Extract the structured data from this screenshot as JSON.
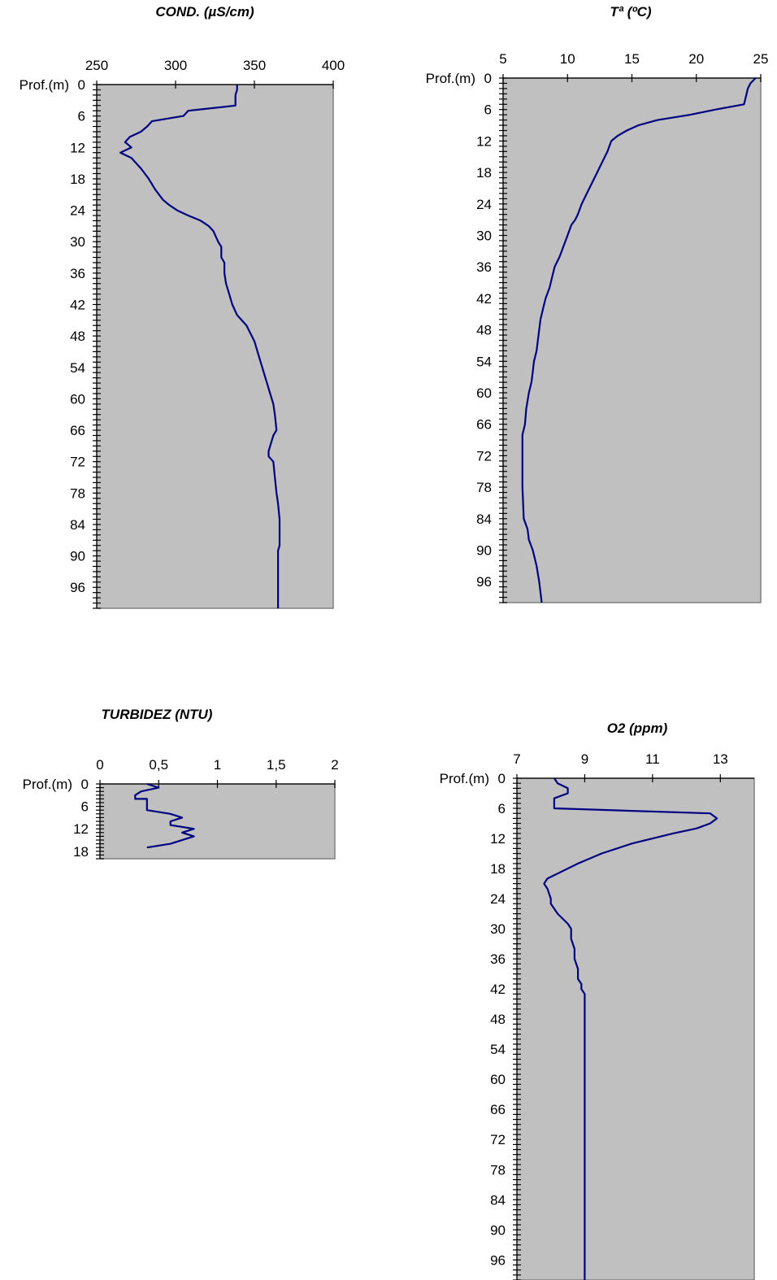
{
  "chart_data": [
    {
      "type": "line",
      "title": "COND. (µS/cm)",
      "depth_label": "Prof.(m)",
      "xlim": [
        250,
        400
      ],
      "ylim": [
        0,
        100
      ],
      "xticks": [
        "250",
        "300",
        "350",
        "400"
      ],
      "yticks": [
        "0",
        "6",
        "12",
        "18",
        "24",
        "30",
        "36",
        "42",
        "48",
        "54",
        "60",
        "66",
        "72",
        "78",
        "84",
        "90",
        "96"
      ],
      "series": [
        {
          "x": [
            339,
            339,
            338,
            338,
            338,
            308,
            305,
            285,
            282,
            278,
            271,
            268,
            272,
            265,
            272,
            278,
            283,
            287,
            292,
            296,
            301,
            308,
            316,
            321,
            324,
            327,
            329,
            329,
            331,
            331,
            332,
            334,
            336,
            339,
            345,
            350,
            353,
            356,
            358,
            360,
            362,
            363,
            364,
            362,
            360,
            359,
            359,
            362,
            363,
            364,
            365,
            366,
            366,
            366,
            365,
            365,
            365,
            365,
            365
          ],
          "y": [
            0,
            1,
            2,
            3,
            4,
            5,
            6,
            7,
            8,
            9,
            10,
            11,
            12,
            13,
            14,
            16,
            18,
            20,
            22,
            23,
            24,
            25,
            26,
            27,
            28,
            30,
            31,
            33,
            34,
            36,
            38,
            40,
            42,
            44,
            46,
            49,
            52,
            55,
            57,
            59,
            61,
            63,
            66,
            67,
            69,
            70,
            71,
            72,
            75,
            78,
            80,
            83,
            86,
            88,
            89,
            91,
            94,
            97,
            100
          ]
        }
      ]
    },
    {
      "type": "line",
      "title": "Tª (ºC)",
      "depth_label": "Prof.(m)",
      "xlim": [
        5,
        25
      ],
      "ylim": [
        0,
        100
      ],
      "xticks": [
        "5",
        "10",
        "15",
        "20",
        "25"
      ],
      "yticks": [
        "0",
        "6",
        "12",
        "18",
        "24",
        "30",
        "36",
        "42",
        "48",
        "54",
        "60",
        "66",
        "72",
        "78",
        "84",
        "90",
        "96"
      ],
      "series": [
        {
          "x": [
            24.6,
            24.2,
            24.0,
            23.9,
            23.7,
            21.5,
            19.5,
            17.0,
            15.5,
            14.6,
            13.9,
            13.4,
            13.1,
            12.7,
            12.3,
            11.9,
            11.5,
            11.1,
            10.8,
            10.6,
            10.3,
            10.0,
            9.7,
            9.4,
            9.0,
            8.8,
            8.6,
            8.3,
            8.1,
            7.9,
            7.8,
            7.7,
            7.6,
            7.4,
            7.3,
            7.2,
            7.0,
            6.8,
            6.7,
            6.5,
            6.5,
            6.5,
            6.6,
            6.9,
            7.0,
            7.3,
            7.6,
            7.8,
            8.0
          ],
          "y": [
            0,
            1,
            2,
            3,
            5,
            6,
            7,
            8,
            9,
            10,
            11,
            12,
            14,
            16,
            18,
            20,
            22,
            24,
            26,
            27,
            28,
            30,
            32,
            34,
            36,
            38,
            40,
            42,
            44,
            46,
            48,
            50,
            52,
            54,
            56,
            58,
            60,
            63,
            66,
            68,
            72,
            78,
            84,
            86,
            88,
            90,
            93,
            96,
            100
          ]
        }
      ]
    },
    {
      "type": "line",
      "title": "TURBIDEZ (NTU)",
      "depth_label": "Prof.(m)",
      "xlim": [
        0,
        2
      ],
      "ylim": [
        0,
        20
      ],
      "xticks": [
        "0",
        "0,5",
        "1",
        "1,5",
        "2"
      ],
      "yticks": [
        "0",
        "6",
        "12",
        "18"
      ],
      "series": [
        {
          "x": [
            0.4,
            0.5,
            0.35,
            0.3,
            0.3,
            0.4,
            0.4,
            0.4,
            0.6,
            0.7,
            0.6,
            0.6,
            0.8,
            0.7,
            0.8,
            0.6,
            0.4
          ],
          "y": [
            0,
            1,
            2,
            3,
            4,
            4,
            5,
            7,
            8,
            9,
            10,
            11,
            12,
            13,
            14,
            16,
            17
          ]
        }
      ]
    },
    {
      "type": "line",
      "title": "O2 (ppm)",
      "depth_label": "Prof.(m)",
      "xlim": [
        7,
        14
      ],
      "ylim": [
        0,
        100
      ],
      "xticks": [
        "7",
        "9",
        "11",
        "13"
      ],
      "yticks": [
        "0",
        "6",
        "12",
        "18",
        "24",
        "30",
        "36",
        "42",
        "48",
        "54",
        "60",
        "66",
        "72",
        "78",
        "84",
        "90",
        "96"
      ],
      "series": [
        {
          "x": [
            8.1,
            8.2,
            8.5,
            8.5,
            8.1,
            8.1,
            12.7,
            12.9,
            12.7,
            12.3,
            11.6,
            10.4,
            9.5,
            8.8,
            8.2,
            7.9,
            7.8,
            7.9,
            8.0,
            8.0,
            8.2,
            8.5,
            8.6,
            8.6,
            8.7,
            8.7,
            8.8,
            8.8,
            8.9,
            8.9,
            9.0,
            9.0,
            9.0,
            9.0
          ],
          "y": [
            0,
            1,
            2,
            3,
            4,
            6,
            7,
            8,
            9,
            10,
            11,
            13,
            15,
            17,
            19,
            20,
            21,
            22,
            24,
            25,
            27,
            29,
            30,
            32,
            34,
            36,
            38,
            40,
            41,
            42,
            43,
            48,
            72,
            100
          ]
        }
      ]
    }
  ]
}
